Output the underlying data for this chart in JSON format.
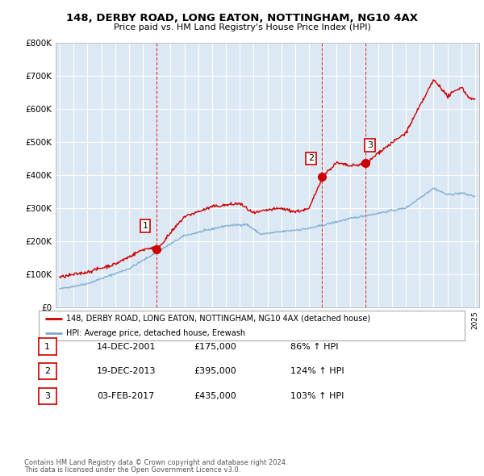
{
  "title": "148, DERBY ROAD, LONG EATON, NOTTINGHAM, NG10 4AX",
  "subtitle": "Price paid vs. HM Land Registry's House Price Index (HPI)",
  "legend_line1": "148, DERBY ROAD, LONG EATON, NOTTINGHAM, NG10 4AX (detached house)",
  "legend_line2": "HPI: Average price, detached house, Erewash",
  "footer1": "Contains HM Land Registry data © Crown copyright and database right 2024.",
  "footer2": "This data is licensed under the Open Government Licence v3.0.",
  "sale_color": "#cc0000",
  "hpi_color": "#7aaad0",
  "vline_color": "#cc0000",
  "plot_bg": "#dce9f5",
  "background_color": "#ffffff",
  "grid_color": "#ffffff",
  "sales": [
    {
      "label": "1",
      "date_num": 2001.96,
      "price": 175000
    },
    {
      "label": "2",
      "date_num": 2013.96,
      "price": 395000
    },
    {
      "label": "3",
      "date_num": 2017.09,
      "price": 435000
    }
  ],
  "table_rows": [
    [
      "1",
      "14-DEC-2001",
      "£175,000",
      "86% ↑ HPI"
    ],
    [
      "2",
      "19-DEC-2013",
      "£395,000",
      "124% ↑ HPI"
    ],
    [
      "3",
      "03-FEB-2017",
      "£435,000",
      "103% ↑ HPI"
    ]
  ],
  "ylim": [
    0,
    800000
  ],
  "xlim_start": 1994.7,
  "xlim_end": 2025.3
}
